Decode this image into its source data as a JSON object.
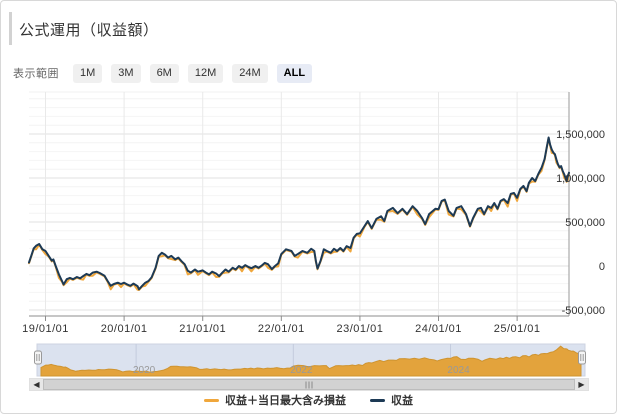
{
  "widget": {
    "title": "公式運用（収益額）"
  },
  "range_selector": {
    "label": "表示範囲",
    "buttons": [
      {
        "label": "1M",
        "selected": false
      },
      {
        "label": "3M",
        "selected": false
      },
      {
        "label": "6M",
        "selected": false
      },
      {
        "label": "12M",
        "selected": false
      },
      {
        "label": "24M",
        "selected": false
      },
      {
        "label": "ALL",
        "selected": true
      }
    ]
  },
  "legend": [
    {
      "label": "収益＋当日最大含み損益",
      "color": "#f0a73c"
    },
    {
      "label": "収益",
      "color": "#1d3a55"
    }
  ],
  "navigator": {
    "year_labels": [
      "2020",
      "2022",
      "2024"
    ],
    "years": [
      2020,
      2022,
      2024
    ],
    "area_color": "#e3a33c",
    "area_edge_color": "#cf9430",
    "bg_color": "#dbe2ef",
    "label_color": "#999999"
  },
  "scrollbar": {
    "left_arrow": "◀",
    "right_arrow": "▶"
  },
  "chart_data": {
    "type": "line",
    "title": "公式運用（収益額）",
    "xlabel": "",
    "ylabel": "",
    "x_unit": "decimal_year",
    "xlim": [
      2018.79,
      2025.66
    ],
    "ylim": [
      -568000,
      1977000
    ],
    "grid": true,
    "minor_grid_step": 100000,
    "x_ticks": [
      2019,
      2020,
      2021,
      2022,
      2023,
      2024,
      2025
    ],
    "x_tick_labels": [
      "19/01/01",
      "20/01/01",
      "21/01/01",
      "22/01/01",
      "23/01/01",
      "24/01/01",
      "25/01/01"
    ],
    "y_ticks": [
      -500000,
      0,
      500000,
      1000000,
      1500000
    ],
    "y_tick_labels": [
      "-500,000",
      "0",
      "500,000",
      "1,000,000",
      "1,500,000"
    ],
    "legend_position": "bottom-center",
    "series": [
      {
        "name": "収益＋当日最大含み損益",
        "color": "#f0a73c",
        "point_index": 2
      },
      {
        "name": "収益",
        "color": "#1d3a55",
        "point_index": 1
      }
    ],
    "points": [
      [
        2018.79,
        40000,
        32000
      ],
      [
        2018.82,
        120000,
        112000
      ],
      [
        2018.85,
        200000,
        192000
      ],
      [
        2018.88,
        230000,
        190000
      ],
      [
        2018.92,
        250000,
        242000
      ],
      [
        2018.96,
        190000,
        182000
      ],
      [
        2019.0,
        170000,
        135000
      ],
      [
        2019.04,
        115000,
        107000
      ],
      [
        2019.08,
        60000,
        52000
      ],
      [
        2019.1,
        75000,
        67000
      ],
      [
        2019.13,
        0,
        -8000
      ],
      [
        2019.17,
        -95000,
        -135000
      ],
      [
        2019.21,
        -170000,
        -178000
      ],
      [
        2019.23,
        -210000,
        -218000
      ],
      [
        2019.27,
        -150000,
        -185000
      ],
      [
        2019.31,
        -135000,
        -143000
      ],
      [
        2019.35,
        -150000,
        -158000
      ],
      [
        2019.4,
        -125000,
        -133000
      ],
      [
        2019.44,
        -140000,
        -148000
      ],
      [
        2019.48,
        -115000,
        -155000
      ],
      [
        2019.52,
        -90000,
        -98000
      ],
      [
        2019.56,
        -105000,
        -113000
      ],
      [
        2019.6,
        -75000,
        -110000
      ],
      [
        2019.65,
        -65000,
        -73000
      ],
      [
        2019.69,
        -80000,
        -88000
      ],
      [
        2019.75,
        -110000,
        -118000
      ],
      [
        2019.79,
        -170000,
        -178000
      ],
      [
        2019.83,
        -225000,
        -265000
      ],
      [
        2019.87,
        -205000,
        -213000
      ],
      [
        2019.92,
        -190000,
        -198000
      ],
      [
        2019.96,
        -205000,
        -240000
      ],
      [
        2020.0,
        -190000,
        -198000
      ],
      [
        2020.04,
        -210000,
        -218000
      ],
      [
        2020.08,
        -225000,
        -233000
      ],
      [
        2020.12,
        -200000,
        -208000
      ],
      [
        2020.17,
        -228000,
        -268000
      ],
      [
        2020.19,
        -265000,
        -273000
      ],
      [
        2020.23,
        -225000,
        -233000
      ],
      [
        2020.27,
        -190000,
        -225000
      ],
      [
        2020.31,
        -170000,
        -178000
      ],
      [
        2020.35,
        -130000,
        -138000
      ],
      [
        2020.4,
        -20000,
        -28000
      ],
      [
        2020.44,
        115000,
        107000
      ],
      [
        2020.48,
        150000,
        110000
      ],
      [
        2020.52,
        130000,
        122000
      ],
      [
        2020.56,
        95000,
        87000
      ],
      [
        2020.6,
        115000,
        80000
      ],
      [
        2020.65,
        75000,
        67000
      ],
      [
        2020.69,
        95000,
        87000
      ],
      [
        2020.73,
        55000,
        47000
      ],
      [
        2020.77,
        20000,
        12000
      ],
      [
        2020.81,
        -55000,
        -95000
      ],
      [
        2020.85,
        -75000,
        -83000
      ],
      [
        2020.9,
        -40000,
        -48000
      ],
      [
        2020.94,
        -65000,
        -100000
      ],
      [
        2021.0,
        -50000,
        -58000
      ],
      [
        2021.04,
        -75000,
        -83000
      ],
      [
        2021.08,
        -95000,
        -103000
      ],
      [
        2021.12,
        -65000,
        -73000
      ],
      [
        2021.17,
        -85000,
        -125000
      ],
      [
        2021.21,
        -115000,
        -123000
      ],
      [
        2021.25,
        -75000,
        -83000
      ],
      [
        2021.29,
        -40000,
        -75000
      ],
      [
        2021.33,
        -65000,
        -73000
      ],
      [
        2021.38,
        -20000,
        -28000
      ],
      [
        2021.42,
        -40000,
        -48000
      ],
      [
        2021.46,
        0,
        -8000
      ],
      [
        2021.5,
        -20000,
        -60000
      ],
      [
        2021.54,
        10000,
        2000
      ],
      [
        2021.58,
        -10000,
        -18000
      ],
      [
        2021.62,
        -25000,
        -60000
      ],
      [
        2021.67,
        0,
        -8000
      ],
      [
        2021.71,
        -20000,
        -28000
      ],
      [
        2021.75,
        5000,
        -3000
      ],
      [
        2021.79,
        35000,
        27000
      ],
      [
        2021.83,
        20000,
        -20000
      ],
      [
        2021.88,
        -35000,
        -43000
      ],
      [
        2021.92,
        0,
        -8000
      ],
      [
        2021.96,
        30000,
        -5000
      ],
      [
        2022.0,
        135000,
        127000
      ],
      [
        2022.06,
        190000,
        182000
      ],
      [
        2022.13,
        170000,
        162000
      ],
      [
        2022.17,
        115000,
        107000
      ],
      [
        2022.21,
        135000,
        95000
      ],
      [
        2022.27,
        170000,
        162000
      ],
      [
        2022.33,
        150000,
        142000
      ],
      [
        2022.38,
        195000,
        160000
      ],
      [
        2022.42,
        170000,
        162000
      ],
      [
        2022.44,
        55000,
        47000
      ],
      [
        2022.46,
        -30000,
        -38000
      ],
      [
        2022.5,
        60000,
        52000
      ],
      [
        2022.54,
        190000,
        150000
      ],
      [
        2022.58,
        170000,
        162000
      ],
      [
        2022.63,
        150000,
        142000
      ],
      [
        2022.67,
        195000,
        160000
      ],
      [
        2022.71,
        170000,
        162000
      ],
      [
        2022.75,
        205000,
        197000
      ],
      [
        2022.79,
        170000,
        162000
      ],
      [
        2022.83,
        225000,
        217000
      ],
      [
        2022.88,
        205000,
        165000
      ],
      [
        2022.92,
        320000,
        312000
      ],
      [
        2022.96,
        365000,
        357000
      ],
      [
        2023.0,
        370000,
        335000
      ],
      [
        2023.06,
        455000,
        447000
      ],
      [
        2023.1,
        510000,
        502000
      ],
      [
        2023.15,
        430000,
        422000
      ],
      [
        2023.21,
        535000,
        527000
      ],
      [
        2023.27,
        565000,
        525000
      ],
      [
        2023.31,
        510000,
        502000
      ],
      [
        2023.35,
        625000,
        617000
      ],
      [
        2023.42,
        660000,
        625000
      ],
      [
        2023.48,
        600000,
        592000
      ],
      [
        2023.54,
        650000,
        642000
      ],
      [
        2023.6,
        590000,
        582000
      ],
      [
        2023.67,
        680000,
        672000
      ],
      [
        2023.73,
        625000,
        585000
      ],
      [
        2023.79,
        545000,
        537000
      ],
      [
        2023.83,
        475000,
        467000
      ],
      [
        2023.88,
        590000,
        555000
      ],
      [
        2023.96,
        650000,
        642000
      ],
      [
        2024.0,
        645000,
        637000
      ],
      [
        2024.04,
        740000,
        732000
      ],
      [
        2024.08,
        755000,
        747000
      ],
      [
        2024.13,
        625000,
        585000
      ],
      [
        2024.19,
        570000,
        562000
      ],
      [
        2024.23,
        660000,
        652000
      ],
      [
        2024.29,
        680000,
        645000
      ],
      [
        2024.35,
        590000,
        582000
      ],
      [
        2024.4,
        455000,
        447000
      ],
      [
        2024.44,
        545000,
        537000
      ],
      [
        2024.5,
        650000,
        642000
      ],
      [
        2024.54,
        660000,
        620000
      ],
      [
        2024.58,
        590000,
        582000
      ],
      [
        2024.63,
        680000,
        672000
      ],
      [
        2024.67,
        660000,
        625000
      ],
      [
        2024.71,
        715000,
        707000
      ],
      [
        2024.75,
        650000,
        642000
      ],
      [
        2024.79,
        740000,
        732000
      ],
      [
        2024.83,
        760000,
        752000
      ],
      [
        2024.88,
        715000,
        675000
      ],
      [
        2024.92,
        820000,
        812000
      ],
      [
        2024.96,
        830000,
        822000
      ],
      [
        2025.0,
        775000,
        740000
      ],
      [
        2025.04,
        875000,
        867000
      ],
      [
        2025.08,
        910000,
        902000
      ],
      [
        2025.12,
        850000,
        842000
      ],
      [
        2025.15,
        945000,
        937000
      ],
      [
        2025.19,
        1000000,
        960000
      ],
      [
        2025.23,
        965000,
        957000
      ],
      [
        2025.27,
        1045000,
        1037000
      ],
      [
        2025.31,
        1115000,
        1080000
      ],
      [
        2025.35,
        1215000,
        1207000
      ],
      [
        2025.38,
        1365000,
        1357000
      ],
      [
        2025.4,
        1460000,
        1452000
      ],
      [
        2025.42,
        1380000,
        1372000
      ],
      [
        2025.44,
        1325000,
        1285000
      ],
      [
        2025.46,
        1290000,
        1282000
      ],
      [
        2025.48,
        1270000,
        1262000
      ],
      [
        2025.5,
        1210000,
        1175000
      ],
      [
        2025.52,
        1155000,
        1147000
      ],
      [
        2025.54,
        1120000,
        1112000
      ],
      [
        2025.56,
        1135000,
        1127000
      ],
      [
        2025.58,
        1080000,
        1072000
      ],
      [
        2025.6,
        1040000,
        1000000
      ],
      [
        2025.62,
        985000,
        977000
      ],
      [
        2025.63,
        965000,
        957000
      ],
      [
        2025.64,
        1005000,
        970000
      ],
      [
        2025.66,
        1060000,
        1052000
      ]
    ]
  }
}
